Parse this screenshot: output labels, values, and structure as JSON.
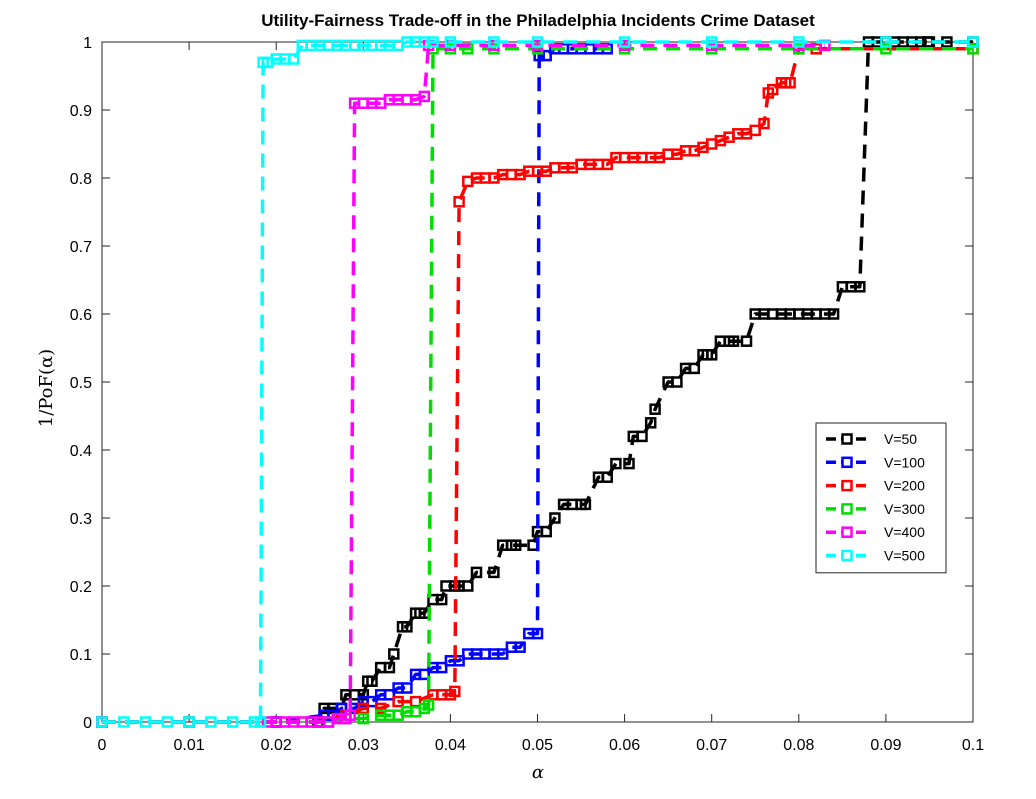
{
  "chart_data": {
    "type": "line",
    "title": "Utility-Fairness Trade-off in the Philadelphia Incidents Crime Dataset",
    "xlabel": "α",
    "ylabel": "1/PoF(α)",
    "xlim": [
      0,
      0.1
    ],
    "ylim": [
      0,
      1
    ],
    "x_ticks": [
      "0",
      "0.01",
      "0.02",
      "0.03",
      "0.04",
      "0.05",
      "0.06",
      "0.07",
      "0.08",
      "0.09",
      "0.1"
    ],
    "y_ticks": [
      "0",
      "0.1",
      "0.2",
      "0.3",
      "0.4",
      "0.5",
      "0.6",
      "0.7",
      "0.8",
      "0.9",
      "1"
    ],
    "grid": false,
    "legend_position": "right",
    "line_style": "dashed",
    "marker": "square",
    "series": [
      {
        "name": "V=50",
        "color": "#000000",
        "x": [
          0.0,
          0.01,
          0.02,
          0.0248,
          0.0255,
          0.0265,
          0.0275,
          0.028,
          0.029,
          0.03,
          0.0305,
          0.031,
          0.032,
          0.033,
          0.0335,
          0.0345,
          0.035,
          0.036,
          0.0365,
          0.037,
          0.038,
          0.039,
          0.0395,
          0.0405,
          0.041,
          0.042,
          0.043,
          0.045,
          0.046,
          0.047,
          0.0475,
          0.0495,
          0.05,
          0.051,
          0.052,
          0.053,
          0.054,
          0.055,
          0.0555,
          0.057,
          0.058,
          0.059,
          0.0605,
          0.061,
          0.062,
          0.063,
          0.0635,
          0.065,
          0.066,
          0.067,
          0.068,
          0.069,
          0.0695,
          0.07,
          0.071,
          0.072,
          0.0725,
          0.074,
          0.075,
          0.076,
          0.077,
          0.078,
          0.079,
          0.08,
          0.081,
          0.082,
          0.083,
          0.084,
          0.085,
          0.086,
          0.087,
          0.088,
          0.089,
          0.09,
          0.091,
          0.092,
          0.093,
          0.094,
          0.0948,
          0.095,
          0.097,
          0.1
        ],
        "y": [
          0.0,
          0.0,
          0.0,
          0.0,
          0.02,
          0.02,
          0.02,
          0.04,
          0.04,
          0.04,
          0.06,
          0.06,
          0.08,
          0.08,
          0.1,
          0.14,
          0.14,
          0.16,
          0.16,
          0.16,
          0.18,
          0.18,
          0.2,
          0.2,
          0.2,
          0.2,
          0.22,
          0.22,
          0.26,
          0.26,
          0.26,
          0.26,
          0.28,
          0.28,
          0.3,
          0.32,
          0.32,
          0.32,
          0.32,
          0.36,
          0.36,
          0.38,
          0.38,
          0.42,
          0.42,
          0.44,
          0.46,
          0.5,
          0.5,
          0.52,
          0.52,
          0.54,
          0.54,
          0.54,
          0.56,
          0.56,
          0.56,
          0.56,
          0.6,
          0.6,
          0.6,
          0.6,
          0.6,
          0.6,
          0.6,
          0.6,
          0.6,
          0.6,
          0.64,
          0.64,
          0.64,
          1.0,
          1.0,
          1.0,
          1.0,
          1.0,
          1.0,
          1.0,
          1.0,
          1.0,
          1.0,
          1.0
        ]
      },
      {
        "name": "V=100",
        "color": "#0000ff",
        "x": [
          0.0,
          0.02,
          0.0255,
          0.0265,
          0.0275,
          0.029,
          0.03,
          0.031,
          0.032,
          0.033,
          0.034,
          0.035,
          0.036,
          0.037,
          0.038,
          0.039,
          0.04,
          0.041,
          0.042,
          0.043,
          0.044,
          0.045,
          0.046,
          0.047,
          0.048,
          0.049,
          0.05,
          0.0502,
          0.051,
          0.052,
          0.053,
          0.054,
          0.055,
          0.056,
          0.057,
          0.058
        ],
        "y": [
          0.0,
          0.0,
          0.01,
          0.01,
          0.02,
          0.02,
          0.03,
          0.03,
          0.04,
          0.04,
          0.05,
          0.05,
          0.07,
          0.07,
          0.08,
          0.08,
          0.09,
          0.09,
          0.1,
          0.1,
          0.1,
          0.1,
          0.1,
          0.11,
          0.11,
          0.13,
          0.13,
          0.98,
          0.98,
          0.99,
          0.99,
          0.99,
          0.99,
          0.99,
          0.99,
          0.99
        ]
      },
      {
        "name": "V=200",
        "color": "#ff0000",
        "x": [
          0.0,
          0.025,
          0.028,
          0.03,
          0.032,
          0.034,
          0.036,
          0.038,
          0.039,
          0.04,
          0.0405,
          0.041,
          0.042,
          0.043,
          0.044,
          0.045,
          0.046,
          0.047,
          0.048,
          0.049,
          0.05,
          0.051,
          0.052,
          0.053,
          0.054,
          0.055,
          0.056,
          0.057,
          0.058,
          0.059,
          0.06,
          0.061,
          0.062,
          0.063,
          0.064,
          0.065,
          0.066,
          0.067,
          0.068,
          0.069,
          0.07,
          0.071,
          0.072,
          0.073,
          0.074,
          0.075,
          0.076,
          0.0765,
          0.077,
          0.078,
          0.0785,
          0.079,
          0.08,
          0.082,
          0.1
        ],
        "y": [
          0.0,
          0.0,
          0.01,
          0.02,
          0.02,
          0.03,
          0.03,
          0.04,
          0.04,
          0.04,
          0.045,
          0.765,
          0.795,
          0.8,
          0.8,
          0.8,
          0.805,
          0.805,
          0.805,
          0.81,
          0.81,
          0.81,
          0.815,
          0.815,
          0.815,
          0.82,
          0.82,
          0.82,
          0.82,
          0.83,
          0.83,
          0.83,
          0.83,
          0.83,
          0.83,
          0.835,
          0.835,
          0.84,
          0.84,
          0.845,
          0.85,
          0.855,
          0.86,
          0.865,
          0.865,
          0.87,
          0.88,
          0.925,
          0.93,
          0.94,
          0.94,
          0.94,
          0.99,
          0.99,
          0.99
        ]
      },
      {
        "name": "V=300",
        "color": "#00dd00",
        "x": [
          0.0,
          0.026,
          0.028,
          0.03,
          0.032,
          0.033,
          0.034,
          0.035,
          0.036,
          0.037,
          0.0375,
          0.038,
          0.04,
          0.042,
          0.045,
          0.05,
          0.06,
          0.07,
          0.08,
          0.09,
          0.1
        ],
        "y": [
          0.0,
          0.0,
          0.005,
          0.005,
          0.01,
          0.01,
          0.01,
          0.015,
          0.015,
          0.02,
          0.025,
          0.99,
          0.99,
          0.99,
          0.99,
          0.99,
          0.99,
          0.99,
          0.99,
          0.99,
          0.99
        ]
      },
      {
        "name": "V=400",
        "color": "#ff00ff",
        "x": [
          0.0,
          0.019,
          0.02,
          0.021,
          0.022,
          0.023,
          0.024,
          0.025,
          0.026,
          0.027,
          0.028,
          0.0285,
          0.029,
          0.03,
          0.031,
          0.032,
          0.033,
          0.034,
          0.035,
          0.036,
          0.037,
          0.0375,
          0.04,
          0.045,
          0.05,
          0.06,
          0.07,
          0.08,
          0.083
        ],
        "y": [
          0.0,
          0.0,
          0.0,
          0.0,
          0.0,
          0.0,
          0.0,
          0.0,
          0.0,
          0.005,
          0.005,
          0.01,
          0.91,
          0.91,
          0.91,
          0.91,
          0.915,
          0.915,
          0.915,
          0.915,
          0.92,
          0.995,
          0.995,
          0.995,
          0.995,
          0.995,
          0.995,
          0.995,
          0.995
        ]
      },
      {
        "name": "V=500",
        "color": "#00ffff",
        "x": [
          0.0,
          0.0025,
          0.005,
          0.0075,
          0.01,
          0.0125,
          0.015,
          0.0175,
          0.0182,
          0.0185,
          0.019,
          0.02,
          0.021,
          0.022,
          0.023,
          0.024,
          0.025,
          0.026,
          0.027,
          0.028,
          0.029,
          0.03,
          0.031,
          0.032,
          0.033,
          0.034,
          0.035,
          0.036,
          0.037,
          0.038,
          0.04,
          0.045,
          0.05,
          0.06,
          0.07,
          0.08,
          0.09,
          0.1
        ],
        "y": [
          0.0,
          0.0,
          0.0,
          0.0,
          0.0,
          0.0,
          0.0,
          0.0,
          0.0,
          0.97,
          0.97,
          0.975,
          0.975,
          0.975,
          0.995,
          0.995,
          0.995,
          0.995,
          0.995,
          0.995,
          0.995,
          0.995,
          0.995,
          0.995,
          0.995,
          0.995,
          1.0,
          1.0,
          1.0,
          1.0,
          1.0,
          1.0,
          1.0,
          1.0,
          1.0,
          1.0,
          1.0,
          1.0
        ]
      }
    ]
  }
}
